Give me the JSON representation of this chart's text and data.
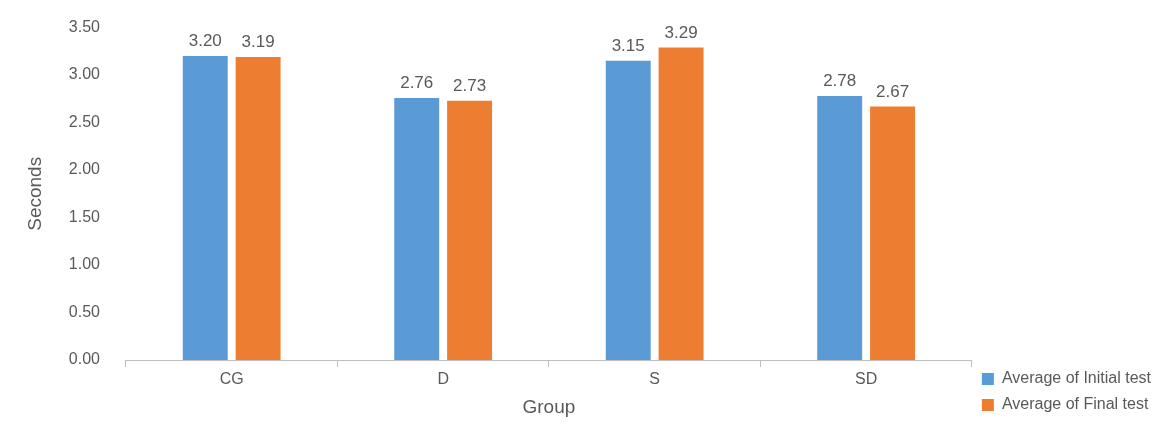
{
  "chart_data": {
    "type": "bar",
    "xlabel": "Group",
    "ylabel": "Seconds",
    "categories": [
      "CG",
      "D",
      "S",
      "SD"
    ],
    "series": [
      {
        "name": "Average of Initial test",
        "color": "#5b9bd5",
        "values": [
          3.2,
          2.76,
          3.15,
          2.78
        ],
        "value_labels": [
          "3.20",
          "2.76",
          "3.15",
          "2.78"
        ]
      },
      {
        "name": "Average of Final test",
        "color": "#ed7d31",
        "values": [
          3.19,
          2.73,
          3.29,
          2.67
        ],
        "value_labels": [
          "3.19",
          "2.73",
          "3.29",
          "2.67"
        ]
      }
    ],
    "ylim": [
      0,
      3.5
    ],
    "yticks": [
      {
        "value": 0,
        "label": "0.00"
      },
      {
        "value": 0.5,
        "label": "0.50"
      },
      {
        "value": 1,
        "label": "1.00"
      },
      {
        "value": 1.5,
        "label": "1.50"
      },
      {
        "value": 2,
        "label": "2.00"
      },
      {
        "value": 2.5,
        "label": "2.50"
      },
      {
        "value": 3,
        "label": "3.00"
      },
      {
        "value": 3.5,
        "label": "3.50"
      }
    ],
    "grid": false,
    "legend": "right"
  }
}
